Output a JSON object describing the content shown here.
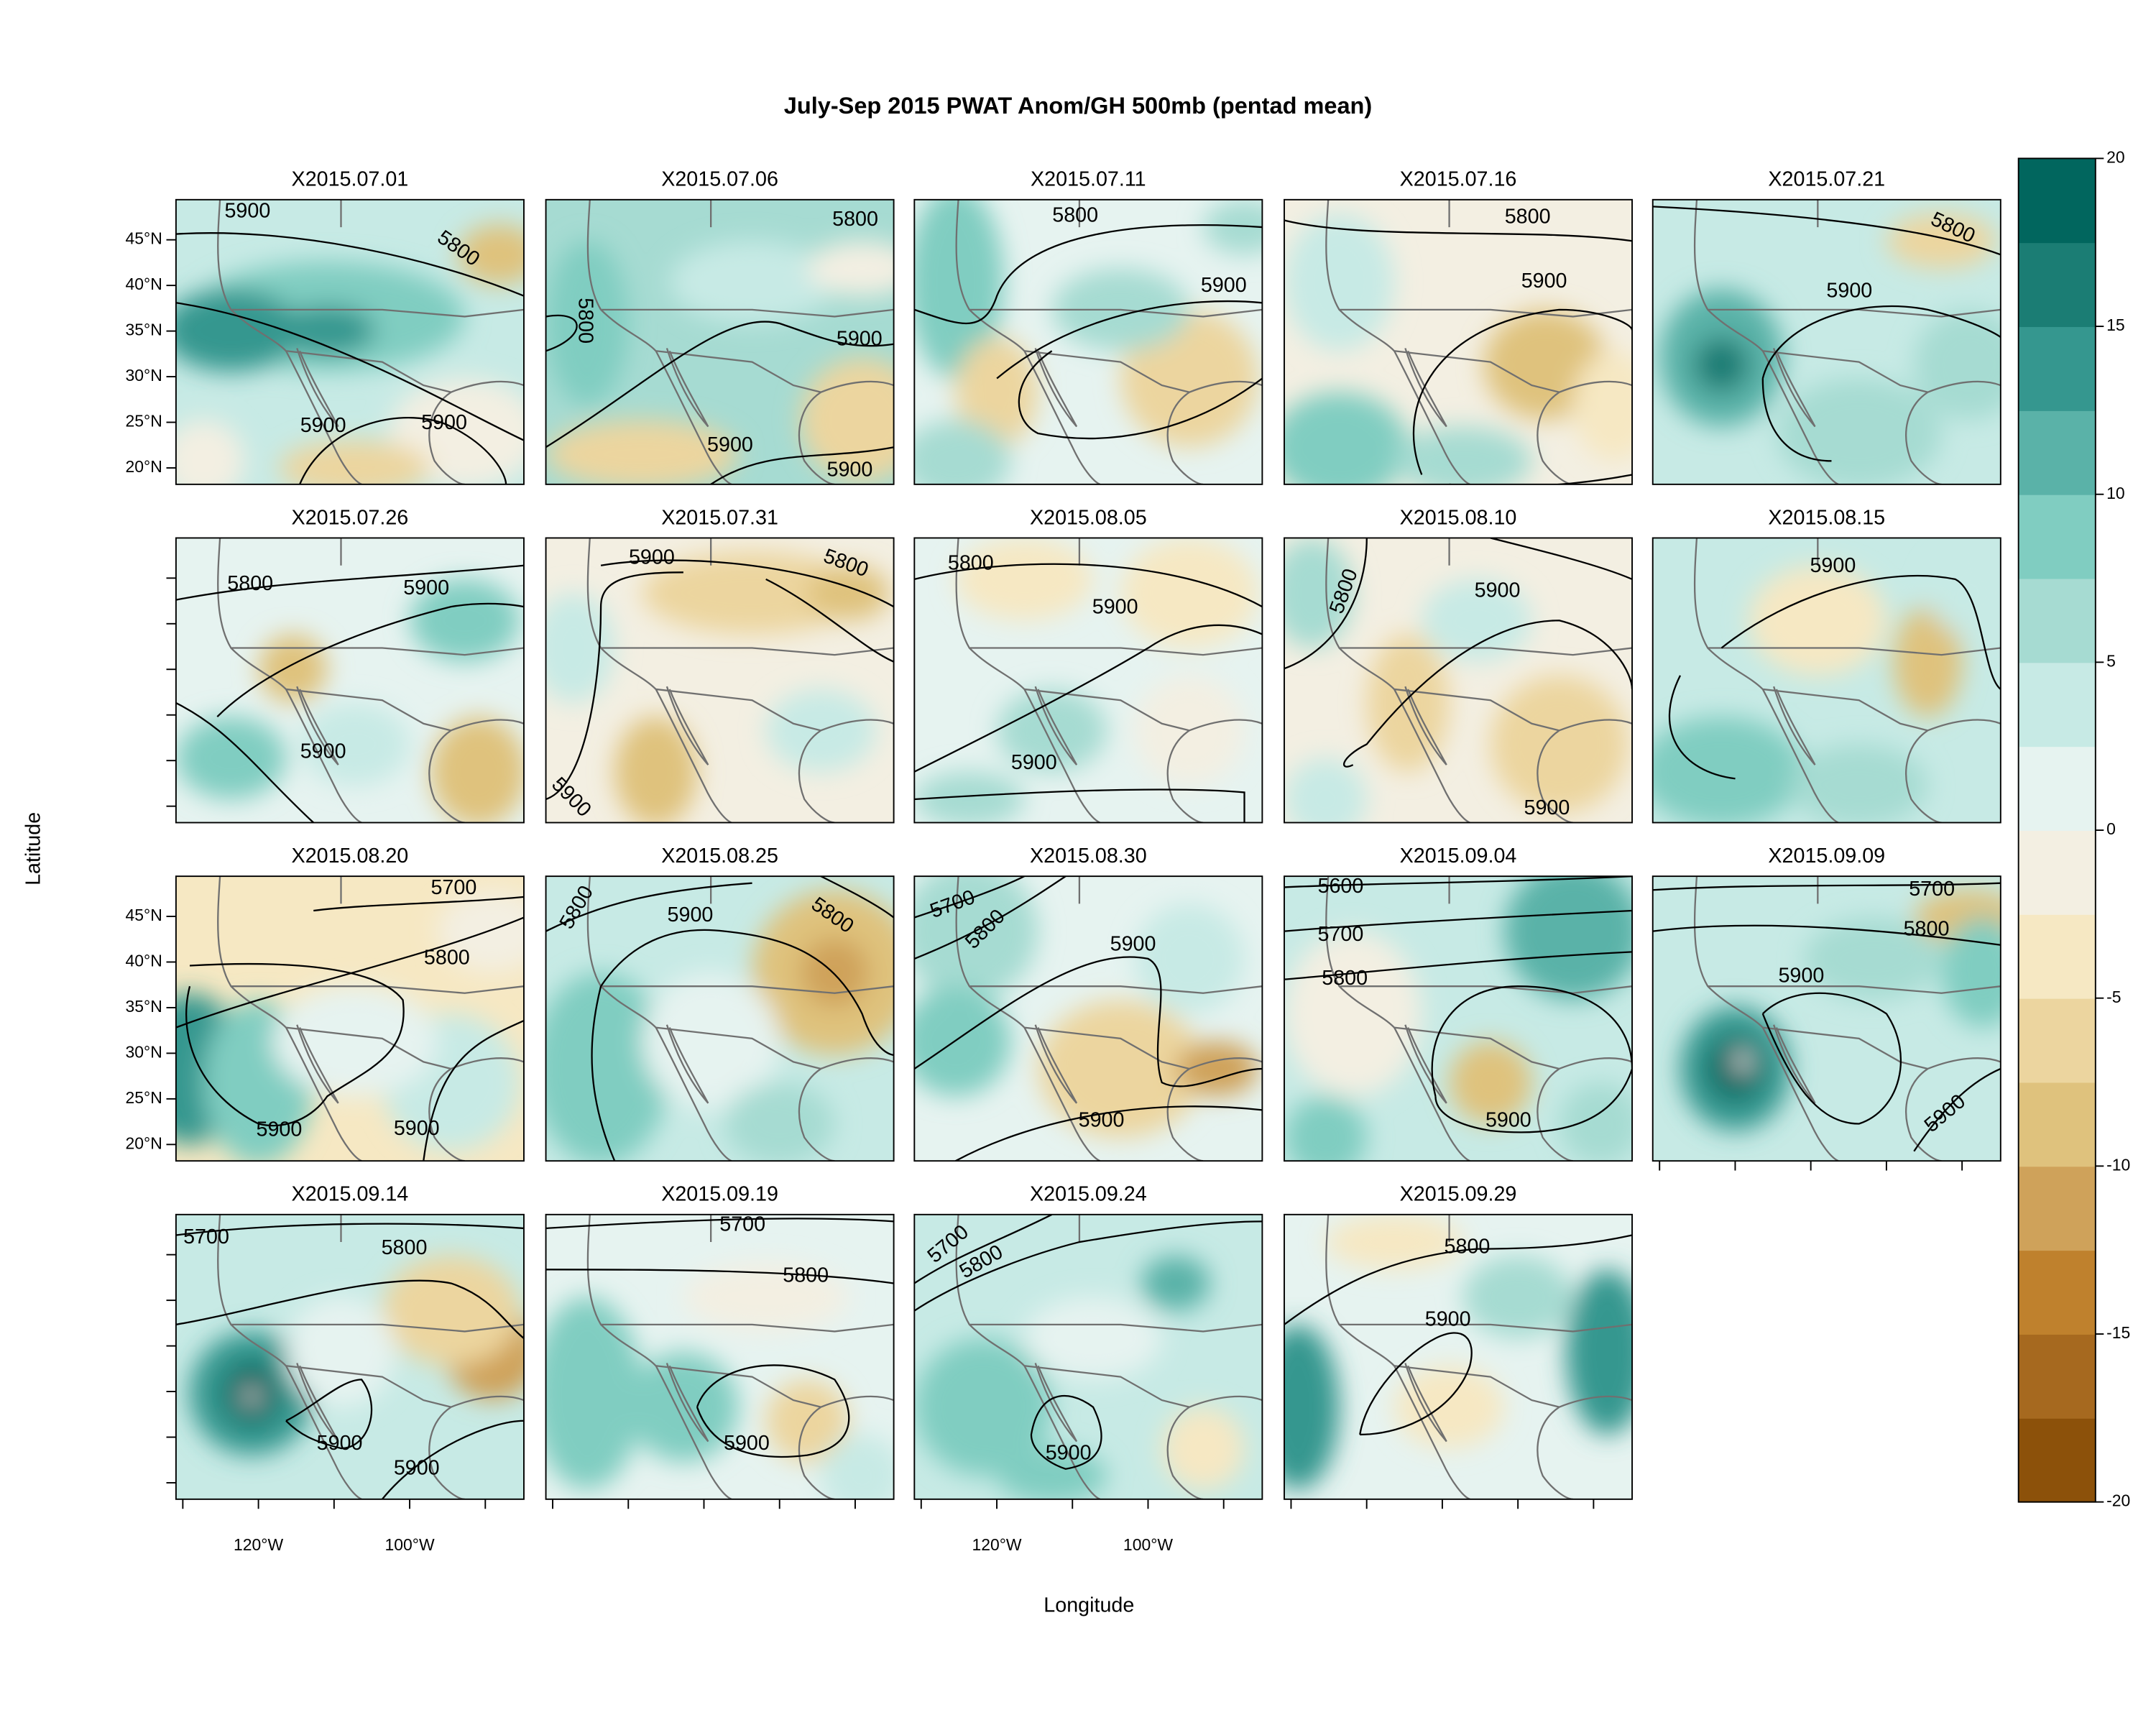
{
  "title": "July-Sep 2015 PWAT Anom/GH 500mb (pentad mean)",
  "x_axis_label": "Longitude",
  "y_axis_label": "Latitude",
  "lon_range": [
    -130.9,
    -84.9
  ],
  "lat_range": [
    18.2,
    49.4
  ],
  "lon_ticks": [
    -130,
    -120,
    -110,
    -100,
    -90
  ],
  "lon_tick_labels": [
    null,
    "120°W",
    null,
    "100°W",
    null
  ],
  "lat_ticks": [
    {
      "value": 20,
      "label": "20°N"
    },
    {
      "value": 25,
      "label": "25°N"
    },
    {
      "value": 30,
      "label": "30°N"
    },
    {
      "value": 35,
      "label": "35°N"
    },
    {
      "value": 40,
      "label": "40°N"
    },
    {
      "value": 45,
      "label": "45°N"
    }
  ],
  "colorbar": {
    "lim": [
      -20,
      20
    ],
    "ticks": [
      -20,
      -15,
      -10,
      -5,
      0,
      5,
      10,
      15,
      20
    ],
    "colors": [
      "#8c510a",
      "#a6691f",
      "#bf812d",
      "#cfa25a",
      "#dfc27d",
      "#ecd59f",
      "#f6e8c3",
      "#f3efe2",
      "#e6f3f0",
      "#c7eae5",
      "#a6dbd2",
      "#80cdc1",
      "#5ab2a8",
      "#35978f",
      "#1b7d74",
      "#01665e"
    ]
  },
  "panels": [
    {
      "title": "X2015.07.01",
      "contour_labels": [
        "5900",
        "5800",
        "5900",
        "5900"
      ]
    },
    {
      "title": "X2015.07.06",
      "contour_labels": [
        "5800",
        "5800",
        "5900",
        "5900",
        "5900"
      ]
    },
    {
      "title": "X2015.07.11",
      "contour_labels": [
        "5800",
        "5900"
      ]
    },
    {
      "title": "X2015.07.16",
      "contour_labels": [
        "5800",
        "5900"
      ]
    },
    {
      "title": "X2015.07.21",
      "contour_labels": [
        "5800",
        "5900"
      ]
    },
    {
      "title": "X2015.07.26",
      "contour_labels": [
        "5800",
        "5900",
        "5900"
      ]
    },
    {
      "title": "X2015.07.31",
      "contour_labels": [
        "5900",
        "5800",
        "5900"
      ]
    },
    {
      "title": "X2015.08.05",
      "contour_labels": [
        "5800",
        "5900",
        "5900"
      ]
    },
    {
      "title": "X2015.08.10",
      "contour_labels": [
        "5800",
        "5900",
        "5900"
      ]
    },
    {
      "title": "X2015.08.15",
      "contour_labels": [
        "5900"
      ]
    },
    {
      "title": "X2015.08.20",
      "contour_labels": [
        "5700",
        "5800",
        "5900",
        "5900"
      ]
    },
    {
      "title": "X2015.08.25",
      "contour_labels": [
        "5800",
        "5900",
        "5800"
      ]
    },
    {
      "title": "X2015.08.30",
      "contour_labels": [
        "5700",
        "5800",
        "5900",
        "5900"
      ]
    },
    {
      "title": "X2015.09.04",
      "contour_labels": [
        "5600",
        "5700",
        "5800",
        "5900"
      ]
    },
    {
      "title": "X2015.09.09",
      "contour_labels": [
        "5700",
        "5800",
        "5900",
        "5900"
      ]
    },
    {
      "title": "X2015.09.14",
      "contour_labels": [
        "5700",
        "5800",
        "5900",
        "5900"
      ]
    },
    {
      "title": "X2015.09.19",
      "contour_labels": [
        "5700",
        "5800",
        "5900"
      ]
    },
    {
      "title": "X2015.09.24",
      "contour_labels": [
        "5700",
        "5800",
        "5900"
      ]
    },
    {
      "title": "X2015.09.29",
      "contour_labels": [
        "5800",
        "5900"
      ]
    }
  ]
}
